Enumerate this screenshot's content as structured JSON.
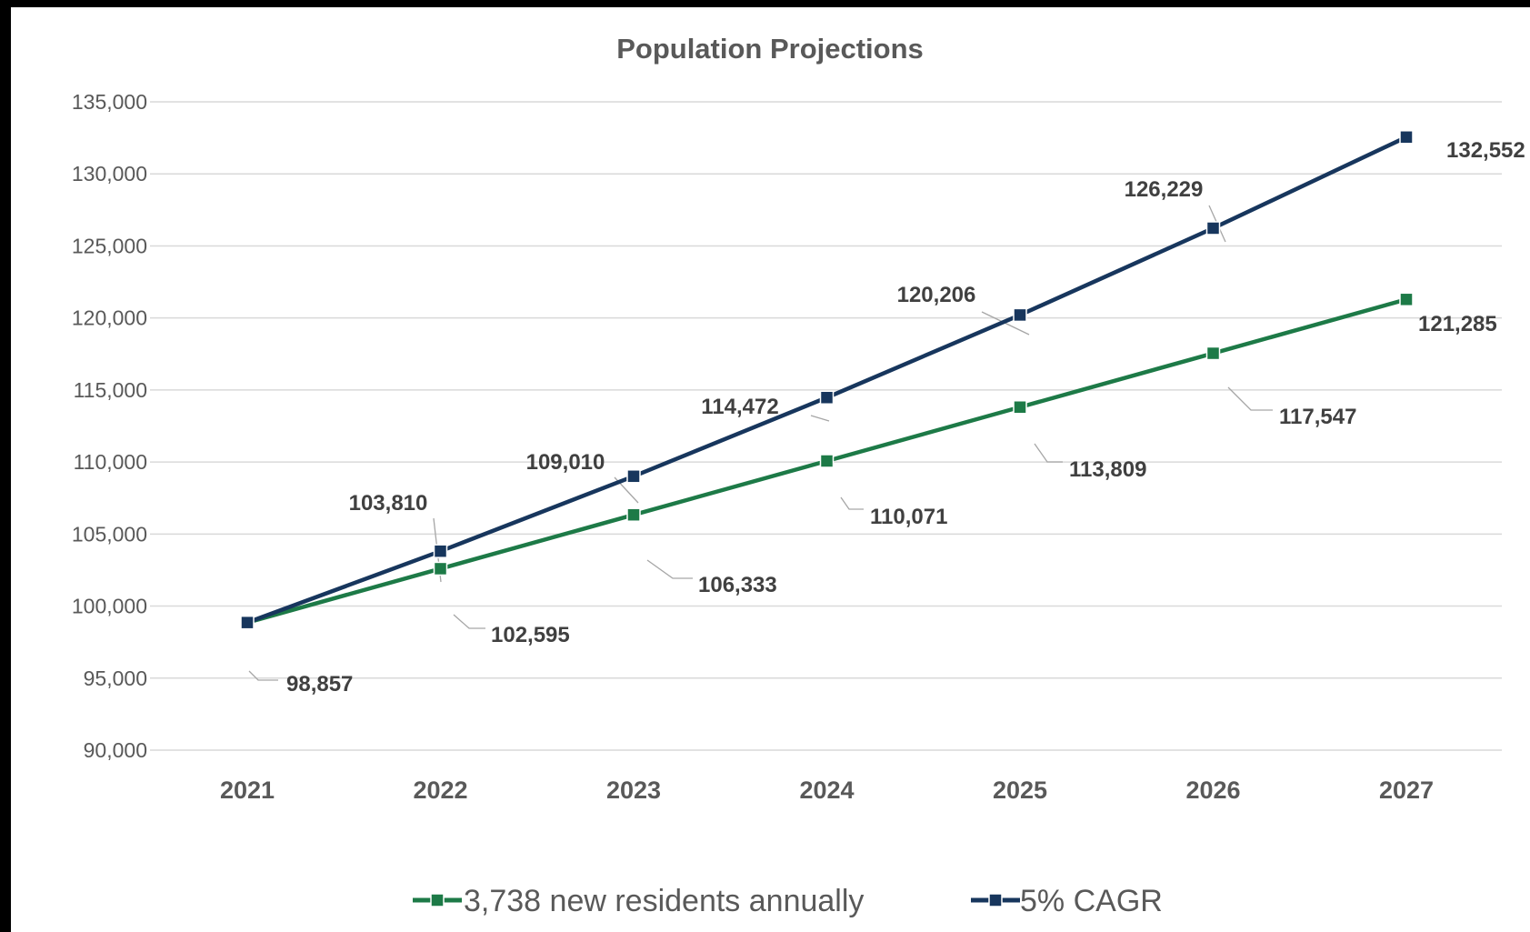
{
  "chart_data": {
    "type": "line",
    "title": "Population Projections",
    "xlabel": "",
    "ylabel": "",
    "categories": [
      "2021",
      "2022",
      "2023",
      "2024",
      "2025",
      "2026",
      "2027"
    ],
    "ylim": [
      90000,
      135000
    ],
    "yticks": [
      90000,
      95000,
      100000,
      105000,
      110000,
      115000,
      120000,
      125000,
      130000,
      135000
    ],
    "ytick_labels": [
      "90,000",
      "95,000",
      "100,000",
      "105,000",
      "110,000",
      "115,000",
      "120,000",
      "125,000",
      "130,000",
      "135,000"
    ],
    "grid": true,
    "legend_position": "bottom",
    "series": [
      {
        "name": "3,738 new residents annually",
        "color": "#1d7a47",
        "values": [
          98857,
          102595,
          106333,
          110071,
          113809,
          117547,
          121285
        ],
        "labels": [
          "98,857",
          "102,595",
          "106,333",
          "110,071",
          "113,809",
          "117,547",
          "121,285"
        ]
      },
      {
        "name": "5% CAGR",
        "color": "#17365d",
        "values": [
          98857,
          103810,
          109010,
          114472,
          120206,
          126229,
          132552
        ],
        "labels": [
          "",
          "103,810",
          "109,010",
          "114,472",
          "120,206",
          "126,229",
          "132,552"
        ]
      }
    ]
  }
}
